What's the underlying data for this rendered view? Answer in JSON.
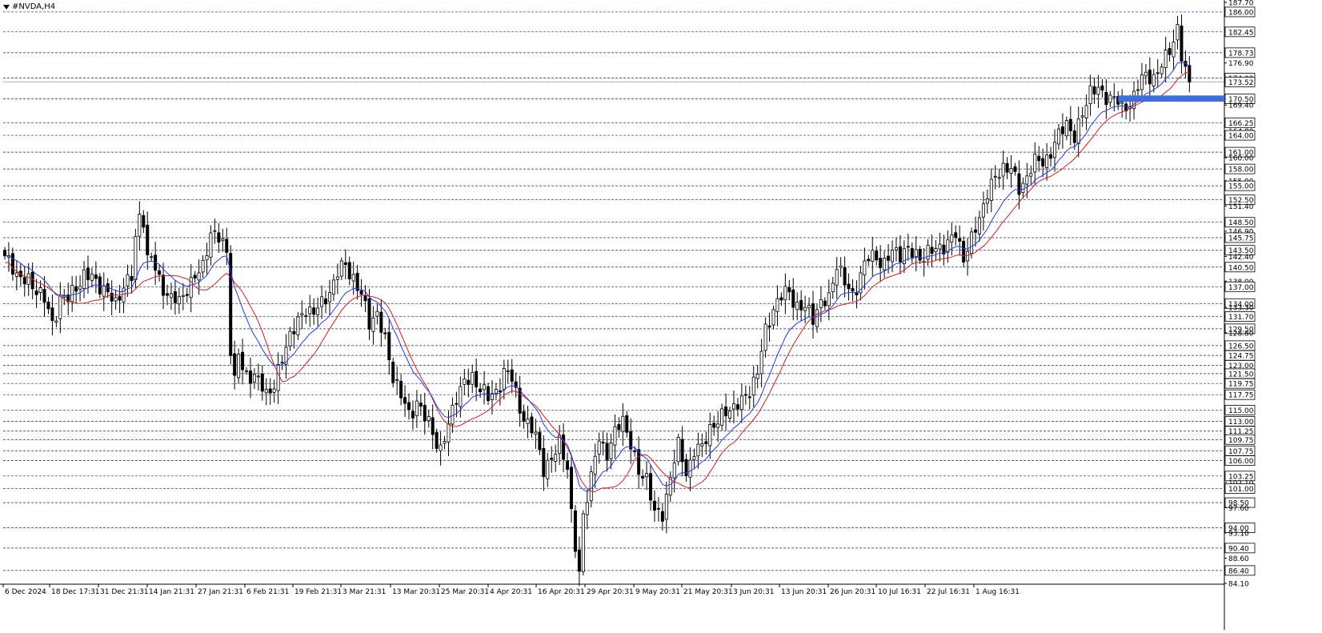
{
  "symbol": {
    "label": "#NVDA,H4"
  },
  "colors": {
    "background": "#ffffff",
    "candle": "#000000",
    "grid_line": "#1a237e",
    "ma_fast": "#1f3bff",
    "ma_slow": "#e31b1b",
    "zone": "#3b6fe0"
  },
  "chart_data": {
    "type": "candlestick",
    "ylim": [
      84.1,
      187.7
    ],
    "price_scale_labels": [
      {
        "value": 187.7,
        "label": "187.70",
        "boxed": false
      },
      {
        "value": 186.0,
        "label": "186.00",
        "boxed": true
      },
      {
        "value": 182.45,
        "label": "182.45",
        "boxed": true
      },
      {
        "value": 178.73,
        "label": "178.73",
        "boxed": true
      },
      {
        "value": 176.9,
        "label": "176.90",
        "boxed": false
      },
      {
        "value": 174.22,
        "label": "174.22",
        "boxed": true
      },
      {
        "value": 173.52,
        "label": "173.52",
        "boxed": true
      },
      {
        "value": 170.5,
        "label": "170.50",
        "boxed": true
      },
      {
        "value": 169.4,
        "label": "169.40",
        "boxed": false
      },
      {
        "value": 166.25,
        "label": "166.25",
        "boxed": true
      },
      {
        "value": 164.8,
        "label": "164.80",
        "boxed": false
      },
      {
        "value": 164.0,
        "label": "164.00",
        "boxed": true
      },
      {
        "value": 161.0,
        "label": "161.00",
        "boxed": true
      },
      {
        "value": 160.0,
        "label": "160.00",
        "boxed": false
      },
      {
        "value": 158.0,
        "label": "158.00",
        "boxed": true
      },
      {
        "value": 155.9,
        "label": "155.90",
        "boxed": false
      },
      {
        "value": 155.0,
        "label": "155.00",
        "boxed": true
      },
      {
        "value": 152.5,
        "label": "152.50",
        "boxed": true
      },
      {
        "value": 151.4,
        "label": "151.40",
        "boxed": false
      },
      {
        "value": 148.5,
        "label": "148.50",
        "boxed": true
      },
      {
        "value": 146.9,
        "label": "146.90",
        "boxed": false
      },
      {
        "value": 145.75,
        "label": "145.75",
        "boxed": true
      },
      {
        "value": 143.5,
        "label": "143.50",
        "boxed": true
      },
      {
        "value": 142.4,
        "label": "142.40",
        "boxed": false
      },
      {
        "value": 140.5,
        "label": "140.50",
        "boxed": true
      },
      {
        "value": 138.0,
        "label": "138.00",
        "boxed": false
      },
      {
        "value": 137.0,
        "label": "137.00",
        "boxed": true
      },
      {
        "value": 134.0,
        "label": "134.00",
        "boxed": true
      },
      {
        "value": 133.3,
        "label": "133.30",
        "boxed": false
      },
      {
        "value": 131.7,
        "label": "131.70",
        "boxed": true
      },
      {
        "value": 129.5,
        "label": "129.50",
        "boxed": true
      },
      {
        "value": 128.8,
        "label": "128.80",
        "boxed": false
      },
      {
        "value": 126.5,
        "label": "126.50",
        "boxed": true
      },
      {
        "value": 124.75,
        "label": "124.75",
        "boxed": true
      },
      {
        "value": 123.0,
        "label": "123.00",
        "boxed": true
      },
      {
        "value": 121.5,
        "label": "121.50",
        "boxed": true
      },
      {
        "value": 119.75,
        "label": "119.75",
        "boxed": true
      },
      {
        "value": 117.75,
        "label": "117.75",
        "boxed": true
      },
      {
        "value": 115.0,
        "label": "115.00",
        "boxed": true
      },
      {
        "value": 113.0,
        "label": "113.00",
        "boxed": true
      },
      {
        "value": 111.25,
        "label": "111.25",
        "boxed": true
      },
      {
        "value": 109.75,
        "label": "109.75",
        "boxed": true
      },
      {
        "value": 107.75,
        "label": "107.75",
        "boxed": true
      },
      {
        "value": 106.0,
        "label": "106.00",
        "boxed": true
      },
      {
        "value": 103.25,
        "label": "103.25",
        "boxed": true
      },
      {
        "value": 102.1,
        "label": "102.10",
        "boxed": false
      },
      {
        "value": 101.0,
        "label": "101.00",
        "boxed": true
      },
      {
        "value": 98.5,
        "label": "98.50",
        "boxed": true
      },
      {
        "value": 97.6,
        "label": "97.60",
        "boxed": false
      },
      {
        "value": 94.0,
        "label": "94.00",
        "boxed": true
      },
      {
        "value": 93.1,
        "label": "93.10",
        "boxed": false
      },
      {
        "value": 90.4,
        "label": "90.40",
        "boxed": true
      },
      {
        "value": 88.6,
        "label": "88.60",
        "boxed": false
      },
      {
        "value": 86.4,
        "label": "86.40",
        "boxed": true
      },
      {
        "value": 84.1,
        "label": "84.10",
        "boxed": false
      }
    ],
    "horizontal_levels": [
      186.0,
      182.45,
      178.73,
      174.22,
      170.5,
      166.25,
      164.0,
      161.0,
      158.0,
      155.0,
      152.5,
      148.5,
      145.75,
      143.5,
      140.5,
      137.0,
      134.0,
      131.7,
      129.5,
      126.5,
      124.75,
      123.0,
      121.5,
      119.75,
      117.75,
      115.0,
      113.0,
      111.25,
      109.75,
      107.75,
      106.0,
      103.25,
      101.0,
      98.5,
      94.0,
      90.4,
      86.4
    ],
    "current_price": 173.52,
    "x_labels": [
      "6 Dec 2024",
      "18 Dec 17:31",
      "31 Dec 21:31",
      "14 Jan 21:31",
      "27 Jan 21:31",
      "6 Feb 21:31",
      "19 Feb 21:31",
      "3 Mar 21:31",
      "13 Mar 20:31",
      "25 Mar 20:31",
      "4 Apr 20:31",
      "16 Apr 20:31",
      "29 Apr 20:31",
      "9 May 20:31",
      "21 May 20:31",
      "3 Jun 20:31",
      "13 Jun 20:31",
      "26 Jun 20:31",
      "10 Jul 16:31",
      "22 Jul 16:31",
      "1 Aug 16:31"
    ],
    "close_path": [
      [
        0,
        142.0
      ],
      [
        3,
        139.0
      ],
      [
        6,
        138.5
      ],
      [
        8,
        136.0
      ],
      [
        10,
        134.5
      ],
      [
        12,
        131.0
      ],
      [
        14,
        135.0
      ],
      [
        16,
        134.0
      ],
      [
        18,
        137.5
      ],
      [
        20,
        139.5
      ],
      [
        22,
        138.0
      ],
      [
        24,
        137.0
      ],
      [
        26,
        136.5
      ],
      [
        28,
        134.0
      ],
      [
        30,
        136.5
      ],
      [
        32,
        139.0
      ],
      [
        33,
        146.0
      ],
      [
        34,
        150.5
      ],
      [
        35,
        149.0
      ],
      [
        36,
        141.0
      ],
      [
        37,
        141.5
      ],
      [
        38,
        140.0
      ],
      [
        40,
        137.5
      ],
      [
        42,
        134.5
      ],
      [
        44,
        134.0
      ],
      [
        46,
        137.0
      ],
      [
        48,
        139.0
      ],
      [
        50,
        140.5
      ],
      [
        52,
        146.0
      ],
      [
        54,
        146.5
      ],
      [
        55,
        145.5
      ],
      [
        56,
        143.5
      ],
      [
        57,
        125.0
      ],
      [
        58,
        119.0
      ],
      [
        59,
        125.0
      ],
      [
        60,
        123.0
      ],
      [
        62,
        121.5
      ],
      [
        64,
        119.5
      ],
      [
        66,
        118.0
      ],
      [
        68,
        120.0
      ],
      [
        70,
        124.0
      ],
      [
        72,
        128.0
      ],
      [
        74,
        131.0
      ],
      [
        76,
        133.5
      ],
      [
        78,
        132.0
      ],
      [
        80,
        133.5
      ],
      [
        82,
        137.0
      ],
      [
        84,
        139.5
      ],
      [
        86,
        140.0
      ],
      [
        88,
        139.0
      ],
      [
        90,
        136.0
      ],
      [
        92,
        130.0
      ],
      [
        94,
        132.0
      ],
      [
        96,
        128.0
      ],
      [
        98,
        121.0
      ],
      [
        100,
        117.0
      ],
      [
        102,
        114.5
      ],
      [
        104,
        117.0
      ],
      [
        106,
        113.0
      ],
      [
        108,
        111.0
      ],
      [
        110,
        108.5
      ],
      [
        112,
        112.0
      ],
      [
        114,
        117.0
      ],
      [
        116,
        120.5
      ],
      [
        118,
        121.0
      ],
      [
        120,
        118.5
      ],
      [
        122,
        117.0
      ],
      [
        124,
        119.0
      ],
      [
        126,
        121.5
      ],
      [
        128,
        120.0
      ],
      [
        130,
        116.0
      ],
      [
        132,
        112.5
      ],
      [
        134,
        110.0
      ],
      [
        136,
        104.5
      ],
      [
        138,
        106.5
      ],
      [
        140,
        109.5
      ],
      [
        142,
        104.0
      ],
      [
        143,
        96.0
      ],
      [
        144,
        91.0
      ],
      [
        145,
        86.6
      ],
      [
        146,
        97.0
      ],
      [
        148,
        102.0
      ],
      [
        150,
        110.0
      ],
      [
        152,
        108.0
      ],
      [
        154,
        110.5
      ],
      [
        156,
        113.0
      ],
      [
        158,
        109.5
      ],
      [
        160,
        104.0
      ],
      [
        162,
        102.5
      ],
      [
        164,
        96.5
      ],
      [
        166,
        97.0
      ],
      [
        168,
        103.0
      ],
      [
        170,
        108.0
      ],
      [
        172,
        104.5
      ],
      [
        174,
        108.0
      ],
      [
        176,
        107.5
      ],
      [
        178,
        112.0
      ],
      [
        180,
        113.5
      ],
      [
        182,
        114.5
      ],
      [
        184,
        115.0
      ],
      [
        186,
        117.0
      ],
      [
        188,
        119.0
      ],
      [
        190,
        121.0
      ],
      [
        192,
        129.0
      ],
      [
        194,
        134.0
      ],
      [
        196,
        135.0
      ],
      [
        198,
        135.5
      ],
      [
        200,
        134.0
      ],
      [
        202,
        133.5
      ],
      [
        204,
        131.0
      ],
      [
        206,
        134.0
      ],
      [
        208,
        135.5
      ],
      [
        210,
        141.0
      ],
      [
        212,
        137.0
      ],
      [
        214,
        136.0
      ],
      [
        216,
        139.5
      ],
      [
        218,
        141.5
      ],
      [
        220,
        142.5
      ],
      [
        222,
        141.5
      ],
      [
        224,
        143.0
      ],
      [
        226,
        142.5
      ],
      [
        228,
        144.0
      ],
      [
        230,
        143.0
      ],
      [
        232,
        141.5
      ],
      [
        234,
        143.5
      ],
      [
        236,
        145.0
      ],
      [
        238,
        144.0
      ],
      [
        240,
        146.0
      ],
      [
        242,
        143.0
      ],
      [
        244,
        145.5
      ],
      [
        246,
        148.5
      ],
      [
        248,
        154.0
      ],
      [
        250,
        157.0
      ],
      [
        252,
        158.0
      ],
      [
        254,
        157.5
      ],
      [
        256,
        155.0
      ],
      [
        258,
        157.0
      ],
      [
        260,
        158.5
      ],
      [
        262,
        159.5
      ],
      [
        264,
        161.5
      ],
      [
        266,
        163.5
      ],
      [
        268,
        166.0
      ],
      [
        270,
        164.0
      ],
      [
        272,
        168.0
      ],
      [
        274,
        171.5
      ],
      [
        276,
        172.0
      ],
      [
        278,
        171.5
      ],
      [
        280,
        170.5
      ],
      [
        282,
        168.0
      ],
      [
        284,
        170.5
      ],
      [
        286,
        173.0
      ],
      [
        288,
        174.0
      ],
      [
        290,
        174.5
      ],
      [
        292,
        177.0
      ],
      [
        294,
        179.0
      ],
      [
        295,
        180.5
      ],
      [
        296,
        182.5
      ],
      [
        297,
        178.0
      ],
      [
        298,
        176.0
      ],
      [
        299,
        173.52
      ]
    ],
    "zone": {
      "x_start": 281,
      "x_end": 312,
      "y_low": 170.0,
      "y_high": 171.1
    }
  }
}
